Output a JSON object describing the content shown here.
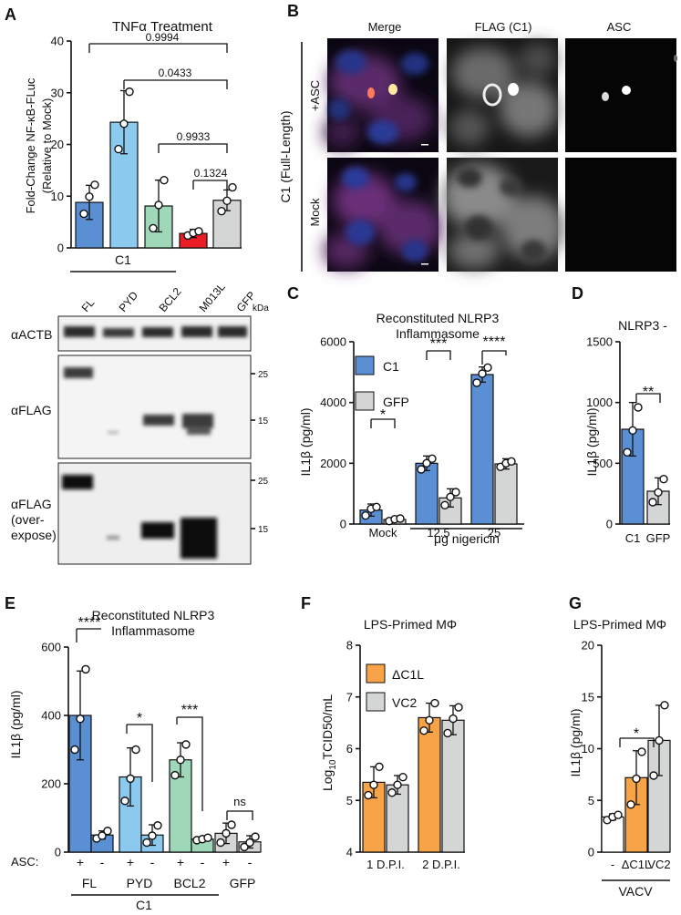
{
  "colors": {
    "blue": "#5b8fd4",
    "lightblue": "#8cc9ee",
    "green": "#9fd7b9",
    "red": "#ea1c24",
    "gray": "#d4d5d5",
    "orange": "#f7a448",
    "white": "#ffffff"
  },
  "panelA": {
    "label": "A",
    "title": "TNFα  Treatment",
    "ylabel1": "Fold-Change NF-κB-FLuc",
    "ylabel2": "(Relative to Mock)",
    "yticks": [
      "0",
      "10",
      "20",
      "30",
      "40"
    ],
    "group": "C1",
    "blot": {
      "lanes": [
        "FL",
        "PYD",
        "BCL2",
        "M013L",
        "GFP"
      ],
      "kda": "kDa",
      "rows": [
        {
          "label1": "αACTB",
          "label2": "",
          "label3": ""
        },
        {
          "label1": "αFLAG",
          "label2": "",
          "label3": ""
        },
        {
          "label1": "αFLAG",
          "label2": "(over-",
          "label3": "expose)"
        }
      ],
      "markers": [
        "25",
        "15",
        "25",
        "15"
      ]
    }
  },
  "panelB": {
    "label": "B",
    "cols": [
      "Merge",
      "FLAG (C1)",
      "ASC"
    ],
    "group": "C1 (Full-Length)",
    "rows": [
      "+ASC",
      "Mock"
    ]
  },
  "panelC": {
    "label": "C",
    "title1": "Reconstituted NLRP3",
    "title2": "Inflammasome",
    "ylabel": "IL1β (pg/ml)",
    "yticks": [
      "0",
      "2000",
      "4000",
      "6000"
    ],
    "legend": [
      "C1",
      "GFP"
    ],
    "xcats": [
      "Mock",
      "12.5",
      "25"
    ],
    "xlabel": "μg nigericin"
  },
  "panelD": {
    "label": "D",
    "title": "NLRP3 -",
    "ylabel": "IL1β (pg/ml)",
    "yticks": [
      "0",
      "500",
      "1000",
      "1500"
    ],
    "xcats": [
      "C1",
      "GFP"
    ]
  },
  "panelE": {
    "label": "E",
    "title1": "Reconstituted NLRP3",
    "title2": "Inflammasome",
    "ylabel": "IL1β (pg/ml)",
    "yticks": [
      "0",
      "200",
      "400",
      "600"
    ],
    "asc_label": "ASC:",
    "asc_signs": [
      "+",
      "-",
      "+",
      "-",
      "+",
      "-",
      "+",
      "-"
    ],
    "groups": [
      "FL",
      "PYD",
      "BCL2",
      "GFP"
    ],
    "group": "C1"
  },
  "panelF": {
    "label": "F",
    "title": "LPS-Primed MΦ",
    "ylabel_pre": "Log",
    "ylabel_sub": "10",
    "ylabel_post": "TCID50/mL",
    "yticks": [
      "4",
      "5",
      "6",
      "7",
      "8"
    ],
    "legend": [
      "ΔC1L",
      "VC2"
    ],
    "xcats": [
      "1 D.P.I.",
      "2 D.P.I."
    ]
  },
  "panelG": {
    "label": "G",
    "title": "LPS-Primed MΦ",
    "ylabel": "IL1β (pg/ml)",
    "yticks": [
      "0",
      "5",
      "10",
      "15",
      "20"
    ],
    "xcats": [
      "-",
      "ΔC1L",
      "VC2"
    ],
    "group": "VACV"
  },
  "chart_data": [
    {
      "type": "bar",
      "panel": "A",
      "ylabel": "Fold-Change NF-κB-FLuc (Relative to Mock)",
      "ylim": [
        0,
        40
      ],
      "title": "TNFα  Treatment",
      "categories": [
        "FL",
        "PYD",
        "BCL2",
        "M013L",
        "GFP"
      ],
      "values": [
        8.8,
        24.3,
        8.1,
        2.8,
        9.2
      ],
      "errors": [
        3.3,
        6.1,
        5.0,
        0.8,
        2.0
      ],
      "points": [
        [
          6.6,
          9.9,
          12.2
        ],
        [
          19.1,
          24.0,
          30.2
        ],
        [
          3.8,
          8.3,
          13.1
        ],
        [
          2.4,
          2.9,
          3.2
        ],
        [
          7.1,
          9.1,
          11.7
        ]
      ],
      "annotations": [
        {
          "from": "FL",
          "to": "GFP",
          "text": "0.9994"
        },
        {
          "from": "PYD",
          "to": "GFP",
          "text": "0.0433"
        },
        {
          "from": "BCL2",
          "to": "GFP",
          "text": "0.9933"
        },
        {
          "from": "M013L",
          "to": "GFP",
          "text": "0.1324"
        }
      ]
    },
    {
      "type": "bar",
      "panel": "C",
      "title": "Reconstituted NLRP3 Inflammasome",
      "ylabel": "IL1β (pg/ml)",
      "xlabel": "μg nigericin",
      "ylim": [
        0,
        6000
      ],
      "categories": [
        "Mock",
        "12.5",
        "25"
      ],
      "series": [
        {
          "name": "C1",
          "values": [
            460,
            2000,
            4920
          ],
          "errors": [
            200,
            240,
            250
          ],
          "points": [
            [
              280,
              500,
              560
            ],
            [
              1800,
              2000,
              2150
            ],
            [
              4650,
              4950,
              5150
            ]
          ]
        },
        {
          "name": "GFP",
          "values": [
            150,
            860,
            1980
          ],
          "errors": [
            60,
            300,
            170
          ],
          "points": [
            [
              100,
              160,
              180
            ],
            [
              620,
              890,
              1050
            ],
            [
              1880,
              2000,
              2060
            ]
          ]
        }
      ],
      "significance": [
        "*",
        "***",
        "****"
      ]
    },
    {
      "type": "bar",
      "panel": "D",
      "title": "NLRP3 -",
      "ylabel": "IL1β (pg/ml)",
      "ylim": [
        0,
        1500
      ],
      "categories": [
        "C1",
        "GFP"
      ],
      "values": [
        780,
        270
      ],
      "errors": [
        220,
        110
      ],
      "points": [
        [
          590,
          770,
          960
        ],
        [
          180,
          260,
          370
        ]
      ],
      "significance": [
        "**"
      ]
    },
    {
      "type": "bar",
      "panel": "E",
      "title": "Reconstituted NLRP3 Inflammasome",
      "ylabel": "IL1β (pg/ml)",
      "ylim": [
        0,
        600
      ],
      "categories": [
        "FL +",
        "FL -",
        "PYD +",
        "PYD -",
        "BCL2 +",
        "BCL2 -",
        "GFP +",
        "GFP -"
      ],
      "values": [
        400,
        50,
        220,
        50,
        270,
        38,
        55,
        30
      ],
      "errors": [
        130,
        12,
        85,
        30,
        50,
        6,
        30,
        18
      ],
      "points": [
        [
          300,
          390,
          535
        ],
        [
          40,
          48,
          62
        ],
        [
          150,
          215,
          300
        ],
        [
          28,
          48,
          78
        ],
        [
          225,
          270,
          315
        ],
        [
          35,
          38,
          42
        ],
        [
          28,
          55,
          80
        ],
        [
          15,
          28,
          45
        ]
      ],
      "significance": [
        "****",
        "*",
        "***",
        "ns"
      ]
    },
    {
      "type": "bar",
      "panel": "F",
      "title": "LPS-Primed MΦ",
      "ylabel": "Log10TCID50/mL",
      "ylim": [
        4,
        8
      ],
      "categories": [
        "1 D.P.I.",
        "2 D.P.I."
      ],
      "series": [
        {
          "name": "ΔC1L",
          "values": [
            5.35,
            6.6
          ],
          "errors": [
            0.3,
            0.28
          ],
          "points": [
            [
              5.1,
              5.3,
              5.65
            ],
            [
              6.35,
              6.55,
              6.88
            ]
          ]
        },
        {
          "name": "VC2",
          "values": [
            5.3,
            6.55
          ],
          "errors": [
            0.18,
            0.28
          ],
          "points": [
            [
              5.15,
              5.3,
              5.45
            ],
            [
              6.3,
              6.58,
              6.8
            ]
          ]
        }
      ]
    },
    {
      "type": "bar",
      "panel": "G",
      "title": "LPS-Primed MΦ",
      "ylabel": "IL1β (pg/ml)",
      "ylim": [
        0,
        20
      ],
      "categories": [
        "-",
        "ΔC1L",
        "VC2"
      ],
      "values": [
        3.4,
        7.2,
        10.8
      ],
      "errors": [
        0.3,
        2.6,
        3.4
      ],
      "points": [
        [
          3.1,
          3.4,
          3.6
        ],
        [
          4.6,
          7.1,
          9.7
        ],
        [
          7.4,
          10.8,
          14.2
        ]
      ],
      "significance": [
        "*"
      ]
    }
  ]
}
